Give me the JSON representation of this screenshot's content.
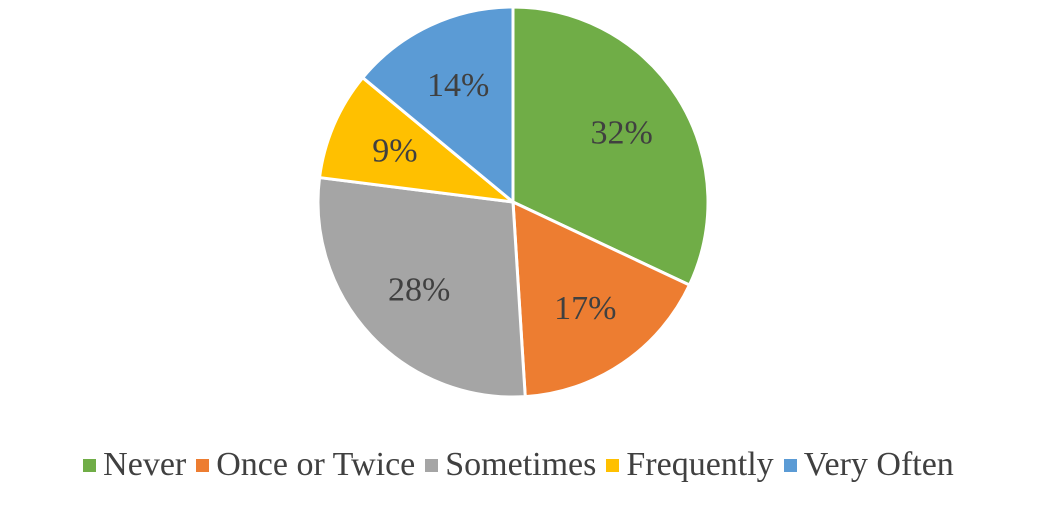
{
  "chart_data": {
    "type": "pie",
    "title": "",
    "categories": [
      "Never",
      "Once or Twice",
      "Sometimes",
      "Frequently",
      "Very Often"
    ],
    "values": [
      32,
      17,
      28,
      9,
      14
    ],
    "labels": [
      "32%",
      "17%",
      "28%",
      "9%",
      "14%"
    ],
    "colors": [
      "#70AD47",
      "#ED7D31",
      "#A5A5A5",
      "#FFC000",
      "#5B9BD5"
    ],
    "start_angle": "12 o'clock",
    "direction": "clockwise",
    "legend_position": "bottom"
  }
}
